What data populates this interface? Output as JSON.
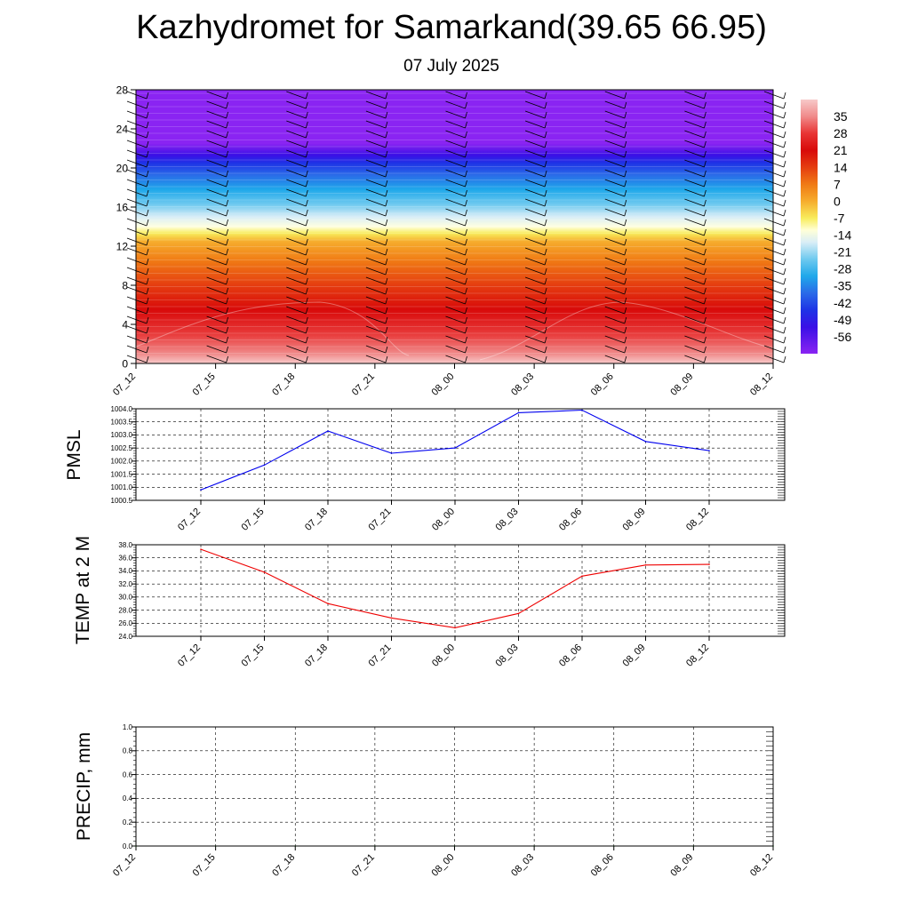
{
  "header": {
    "title": "Kazhydromet for Samarkand(39.65 66.95)",
    "subtitle": "07 July 2025"
  },
  "chart_data": [
    {
      "type": "heatmap",
      "name": "temperature-cross-section",
      "x_tick_labels": [
        "07_12",
        "07_15",
        "07_18",
        "07_21",
        "08_00",
        "08_03",
        "08_06",
        "08_09",
        "08_12"
      ],
      "y_ticks": [
        0,
        4,
        8,
        12,
        16,
        20,
        24,
        28
      ],
      "ylim": [
        0,
        28
      ],
      "colorbar_labels": [
        35,
        28,
        21,
        14,
        7,
        0,
        -7,
        -14,
        -21,
        -28,
        -35,
        -42,
        -49,
        -56
      ],
      "colorbar_range": [
        -63,
        42
      ],
      "colorbar_stops": [
        {
          "value": 42,
          "color": "#f7c9c9"
        },
        {
          "value": 35,
          "color": "#f08a8a"
        },
        {
          "value": 28,
          "color": "#e83434"
        },
        {
          "value": 21,
          "color": "#d80a0a"
        },
        {
          "value": 14,
          "color": "#e53d10"
        },
        {
          "value": 7,
          "color": "#f07a15"
        },
        {
          "value": 0,
          "color": "#f6ad2d"
        },
        {
          "value": -7,
          "color": "#f8ec5c"
        },
        {
          "value": -12,
          "color": "#ffffd8"
        },
        {
          "value": -17,
          "color": "#d9eef7"
        },
        {
          "value": -24,
          "color": "#6ec9ef"
        },
        {
          "value": -31,
          "color": "#1fa8ea"
        },
        {
          "value": -38,
          "color": "#2a6ae8"
        },
        {
          "value": -45,
          "color": "#1e33e6"
        },
        {
          "value": -52,
          "color": "#3a10e6"
        },
        {
          "value": -63,
          "color": "#8a24f2"
        }
      ],
      "profile_stops": [
        {
          "y": 0,
          "color": "#f7c9c9"
        },
        {
          "y": 1,
          "color": "#f08a8a"
        },
        {
          "y": 3,
          "color": "#e83a3a"
        },
        {
          "y": 5.5,
          "color": "#d80a0a"
        },
        {
          "y": 8,
          "color": "#e53d10"
        },
        {
          "y": 10.5,
          "color": "#f07a15"
        },
        {
          "y": 12.5,
          "color": "#f6ad2d"
        },
        {
          "y": 13.3,
          "color": "#f8ec5c"
        },
        {
          "y": 14,
          "color": "#ffffe0"
        },
        {
          "y": 15,
          "color": "#d9eef7"
        },
        {
          "y": 16.3,
          "color": "#6ec9ef"
        },
        {
          "y": 17.8,
          "color": "#1fa8ea"
        },
        {
          "y": 19.3,
          "color": "#2a6ae8"
        },
        {
          "y": 20.5,
          "color": "#1e33e6"
        },
        {
          "y": 21.3,
          "color": "#3a10e6"
        },
        {
          "y": 22.5,
          "color": "#8a24f2"
        },
        {
          "y": 28,
          "color": "#8a24f2"
        }
      ],
      "wind_barb_columns": [
        "07_12",
        "07_15",
        "07_18",
        "07_21",
        "08_00",
        "08_03",
        "08_06",
        "08_09",
        "08_12"
      ]
    },
    {
      "type": "line",
      "name": "pmsl",
      "ylabel": "PMSL",
      "x": [
        "07_12",
        "07_15",
        "07_18",
        "07_21",
        "08_00",
        "08_03",
        "08_06",
        "08_09",
        "08_12"
      ],
      "values": [
        1000.9,
        1001.85,
        1003.15,
        1002.3,
        1002.5,
        1003.85,
        1003.95,
        1002.75,
        1002.4
      ],
      "ylim": [
        1000.5,
        1004.0
      ],
      "y_tick_labels": [
        "1000.5",
        "1001.0",
        "1001.5",
        "1002.0",
        "1002.5",
        "1003.0",
        "1003.5",
        "1004.0"
      ],
      "color": "#0000ee"
    },
    {
      "type": "line",
      "name": "temp2m",
      "ylabel": "TEMP at 2 M",
      "x": [
        "07_12",
        "07_15",
        "07_18",
        "07_21",
        "08_00",
        "08_03",
        "08_06",
        "08_09",
        "08_12"
      ],
      "values": [
        37.3,
        33.8,
        29.0,
        26.8,
        25.3,
        27.5,
        33.2,
        34.9,
        35.0
      ],
      "ylim": [
        24.0,
        38.0
      ],
      "y_tick_labels": [
        "24.0",
        "26.0",
        "28.0",
        "30.0",
        "32.0",
        "34.0",
        "36.0",
        "38.0"
      ],
      "color": "#ee0000"
    },
    {
      "type": "line",
      "name": "precip",
      "ylabel": "PRECIP, mm",
      "x": [
        "07_12",
        "07_15",
        "07_18",
        "07_21",
        "08_00",
        "08_03",
        "08_06",
        "08_09",
        "08_12"
      ],
      "values": [
        0,
        0,
        0,
        0,
        0,
        0,
        0,
        0,
        0
      ],
      "ylim": [
        0.0,
        1.0
      ],
      "y_tick_labels": [
        "0.0",
        "0.2",
        "0.4",
        "0.6",
        "0.8",
        "1.0"
      ],
      "color": "#008000"
    }
  ]
}
